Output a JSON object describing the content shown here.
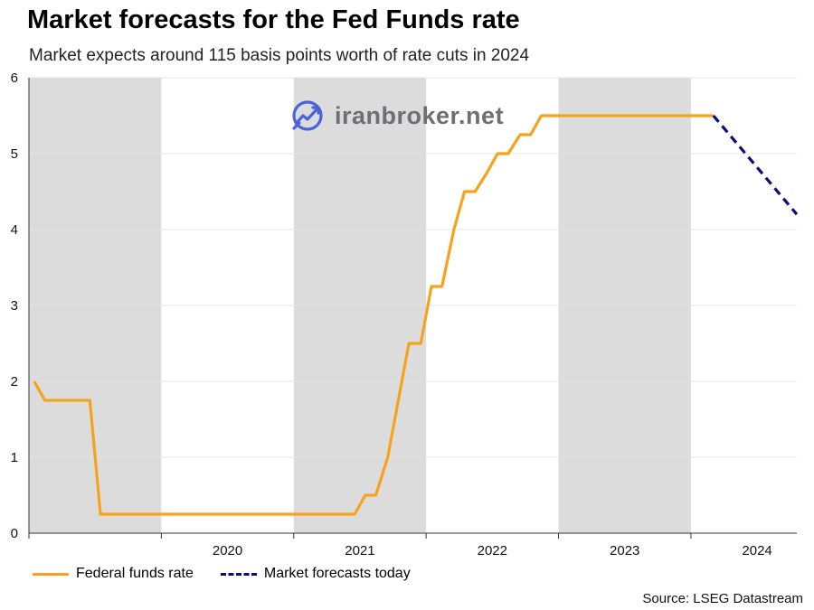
{
  "chart_data": {
    "type": "line",
    "title": "Market forecasts for the Fed Funds rate",
    "subtitle": "Market expects around 115 basis points worth of rate cuts in 2024",
    "x_label": "",
    "y_label": "",
    "ylim": [
      0,
      6
    ],
    "xlim": [
      2019.0,
      2024.8
    ],
    "y_ticks": [
      "0",
      "1",
      "2",
      "3",
      "4",
      "5",
      "6"
    ],
    "x_ticks": [
      "2020",
      "2021",
      "2022",
      "2023",
      "2024"
    ],
    "grid": "horizontal",
    "shaded_years": [
      2019,
      2021,
      2023
    ],
    "legend_position": "bottom-left",
    "series": [
      {
        "name": "Federal funds rate",
        "color": "#f7a21c",
        "style": "solid",
        "points": [
          [
            2019.04,
            2.0
          ],
          [
            2019.12,
            1.75
          ],
          [
            2019.46,
            1.75
          ],
          [
            2019.54,
            0.25
          ],
          [
            2021.46,
            0.25
          ],
          [
            2021.54,
            0.5
          ],
          [
            2021.62,
            0.5
          ],
          [
            2021.71,
            1.0
          ],
          [
            2021.87,
            2.5
          ],
          [
            2021.96,
            2.5
          ],
          [
            2022.04,
            3.25
          ],
          [
            2022.12,
            3.25
          ],
          [
            2022.21,
            4.0
          ],
          [
            2022.29,
            4.5
          ],
          [
            2022.37,
            4.5
          ],
          [
            2022.46,
            4.75
          ],
          [
            2022.54,
            5.0
          ],
          [
            2022.62,
            5.0
          ],
          [
            2022.71,
            5.25
          ],
          [
            2022.79,
            5.25
          ],
          [
            2022.87,
            5.5
          ],
          [
            2024.17,
            5.5
          ]
        ]
      },
      {
        "name": "Market forecasts today",
        "color": "#0c0e7d",
        "style": "dashed",
        "points": [
          [
            2024.17,
            5.5
          ],
          [
            2024.8,
            4.2
          ]
        ]
      }
    ],
    "source": "Source: LSEG Datastream"
  },
  "watermark": {
    "text": "iranbroker.net"
  }
}
